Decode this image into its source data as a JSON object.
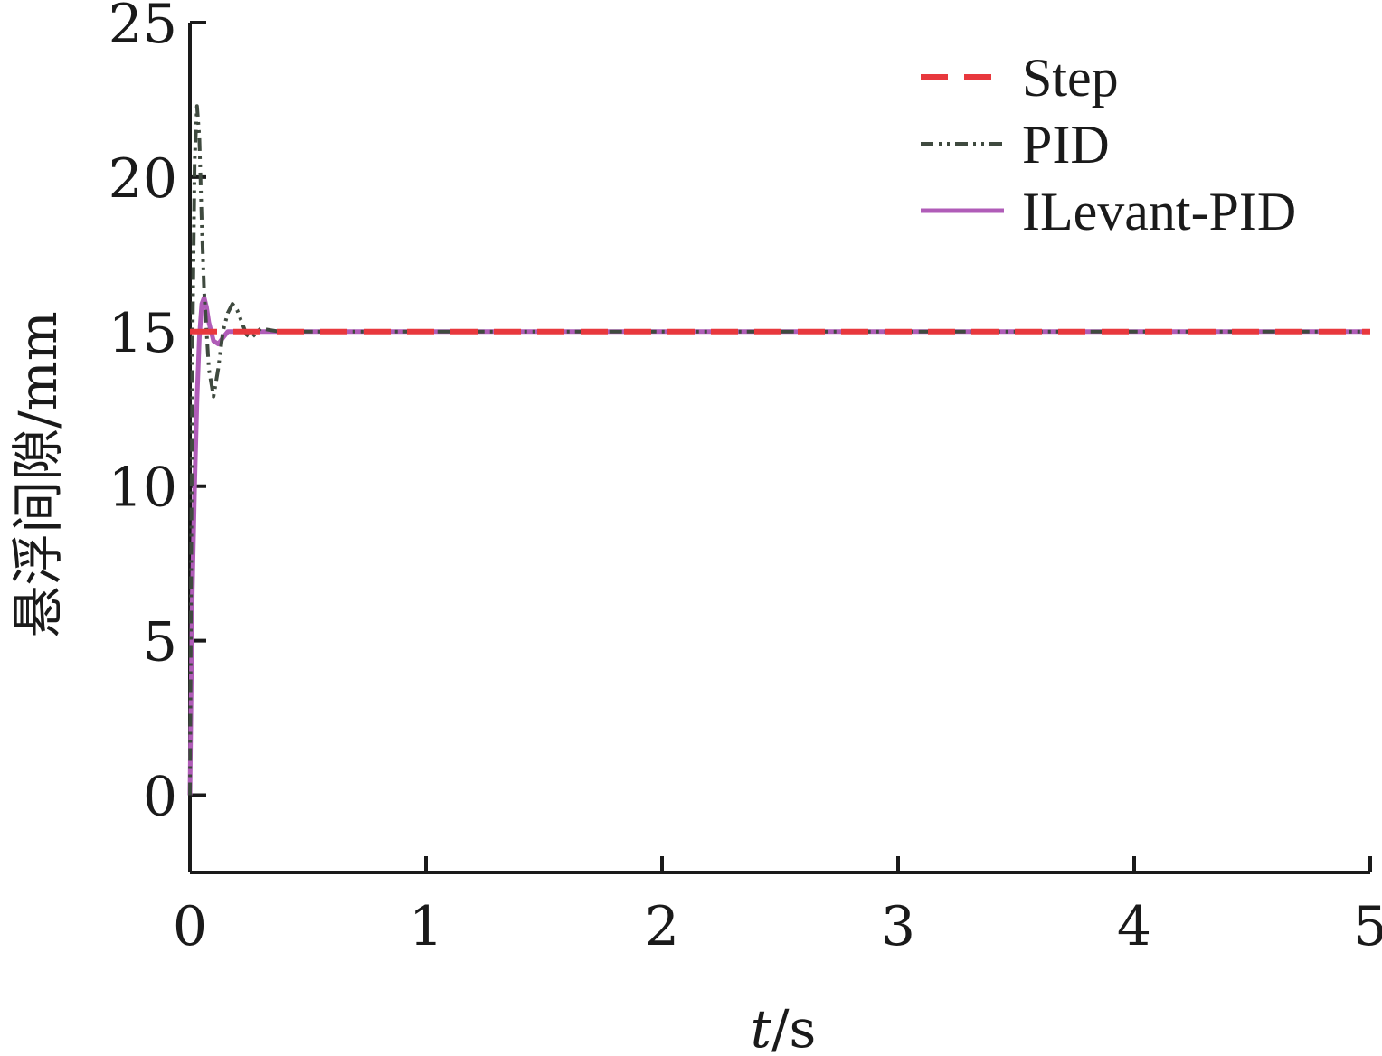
{
  "chart_data": {
    "type": "line",
    "xlabel_italic": "t",
    "xlabel_unit": "/s",
    "ylabel": "悬浮间隙/mm",
    "xlim": [
      0,
      5
    ],
    "ylim": [
      -2.5,
      25
    ],
    "x_ticks": [
      0,
      1,
      2,
      3,
      4,
      5
    ],
    "y_ticks": [
      0,
      5,
      10,
      15,
      20,
      25
    ],
    "x_tick_labels": [
      "0",
      "1",
      "2",
      "3",
      "4",
      "5"
    ],
    "y_tick_labels": [
      "0",
      "5",
      "10",
      "15",
      "20",
      "25"
    ],
    "grid": false,
    "legend_position": "top-right",
    "series": [
      {
        "name": "Step",
        "color": "#e8383d",
        "dash": "dashed",
        "x": [
          0,
          5
        ],
        "y": [
          15,
          15
        ]
      },
      {
        "name": "PID",
        "color": "#3f4a3f",
        "dash": "dash-dot-dot",
        "x": [
          0,
          0.01,
          0.02,
          0.03,
          0.04,
          0.05,
          0.06,
          0.08,
          0.1,
          0.12,
          0.14,
          0.16,
          0.18,
          0.2,
          0.22,
          0.24,
          0.26,
          0.28,
          0.3,
          0.34,
          0.38,
          0.45,
          0.6,
          1.0,
          5.0
        ],
        "y": [
          0,
          14,
          20.5,
          22.3,
          21.3,
          18.5,
          16.3,
          13.8,
          12.9,
          13.8,
          15.0,
          15.6,
          15.9,
          15.7,
          15.3,
          14.9,
          14.8,
          14.95,
          15.1,
          15.05,
          15.0,
          15.0,
          15.0,
          15.0,
          15.0
        ]
      },
      {
        "name": "ILevant-PID",
        "color": "#b05cb8",
        "dash": "solid",
        "x": [
          0,
          0.01,
          0.02,
          0.03,
          0.04,
          0.05,
          0.06,
          0.07,
          0.08,
          0.1,
          0.12,
          0.14,
          0.16,
          0.2,
          0.3,
          0.5,
          5.0
        ],
        "y": [
          0,
          6.5,
          10.0,
          12.8,
          14.8,
          15.9,
          16.1,
          15.8,
          15.3,
          14.7,
          14.6,
          14.8,
          15.0,
          15.0,
          15.0,
          15.0,
          15.0
        ]
      }
    ]
  }
}
